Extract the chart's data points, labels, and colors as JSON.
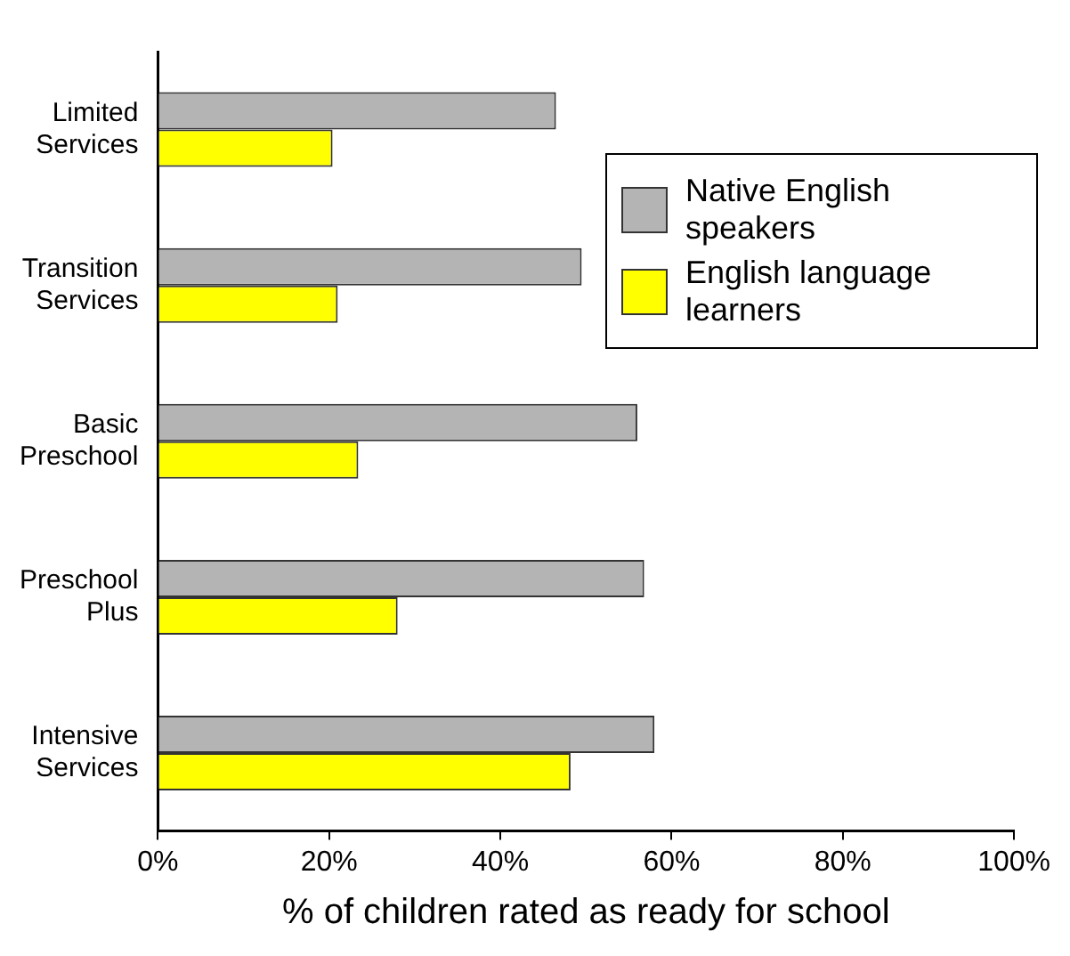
{
  "chart_data": {
    "type": "bar",
    "orientation": "horizontal",
    "xlabel": "% of children rated as ready for school",
    "categories": [
      "Limited\nServices",
      "Transition\nServices",
      "Basic\nPreschool",
      "Preschool\nPlus",
      "Intensive\nServices"
    ],
    "series": [
      {
        "name": "Native English speakers",
        "color": "#b4b4b4",
        "values": [
          46.5,
          49.5,
          56,
          56.8,
          58
        ]
      },
      {
        "name": "English language learners",
        "color": "#ffff00",
        "values": [
          20.4,
          21,
          23.4,
          28,
          48.2
        ]
      }
    ],
    "xlim": [
      0,
      100
    ],
    "xticks": [
      {
        "value": 0,
        "label": "0%"
      },
      {
        "value": 20,
        "label": "20%"
      },
      {
        "value": 40,
        "label": "40%"
      },
      {
        "value": 60,
        "label": "60%"
      },
      {
        "value": 80,
        "label": "80%"
      },
      {
        "value": 100,
        "label": "100%"
      }
    ],
    "grid": false,
    "legend": "right"
  }
}
